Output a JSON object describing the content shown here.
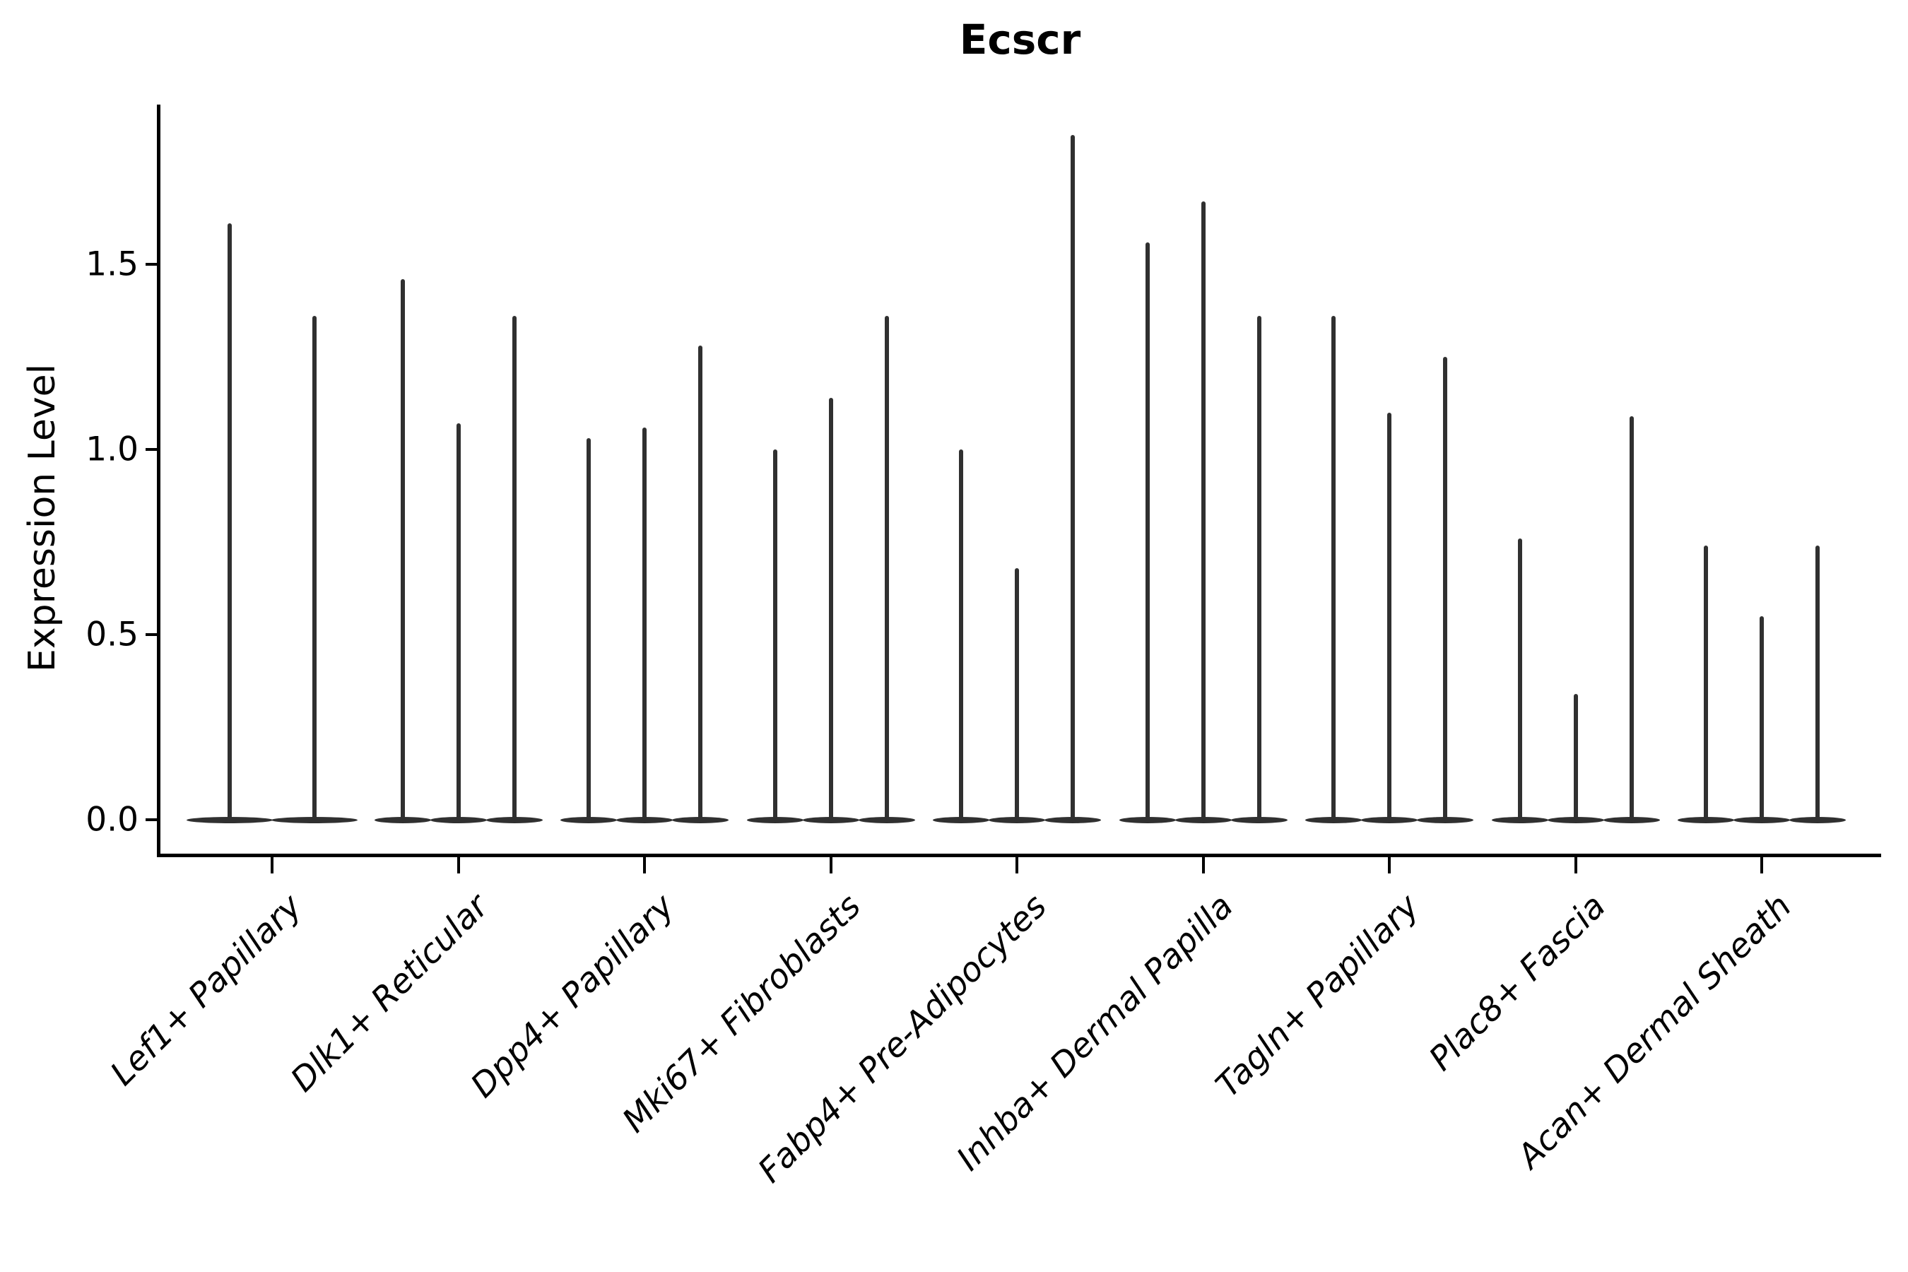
{
  "chart_data": {
    "type": "violin",
    "title": "Ecscr",
    "ylabel": "Expression Level",
    "xlabel": "",
    "ylim": [
      0,
      1.93
    ],
    "yticks": [
      0.0,
      0.5,
      1.0,
      1.5
    ],
    "ytick_labels": [
      "0.0",
      "0.5",
      "1.0",
      "1.5"
    ],
    "grid": false,
    "legend": "none",
    "categories": [
      "Lef1+ Papillary",
      "Dlk1+ Reticular",
      "Dpp4+ Papillary",
      "Mki67+ Fibroblasts",
      "Fabp4+ Pre-Adipocytes",
      "Inhba+ Dermal Papilla",
      "Tagln+ Papillary",
      "Plac8+ Fascia",
      "Acan+ Dermal Sheath"
    ],
    "violins_per_category": [
      2,
      3,
      3,
      3,
      3,
      3,
      3,
      3,
      3
    ],
    "violin_max_values": [
      [
        1.61,
        1.36
      ],
      [
        1.46,
        1.07,
        1.36
      ],
      [
        1.03,
        1.06,
        1.28
      ],
      [
        1.0,
        1.14,
        1.36
      ],
      [
        1.0,
        0.68,
        1.85
      ],
      [
        1.56,
        1.67,
        1.36
      ],
      [
        1.36,
        1.1,
        1.25
      ],
      [
        0.76,
        0.34,
        1.09
      ],
      [
        0.74,
        0.55,
        0.74
      ]
    ],
    "violin_shape_note": "each violin is a flat bulge at expression 0 with a thin vertical spike reaching its max value",
    "colors": {
      "violin": "#303030",
      "axis": "#000000",
      "text": "#000000",
      "background": "#ffffff"
    }
  }
}
